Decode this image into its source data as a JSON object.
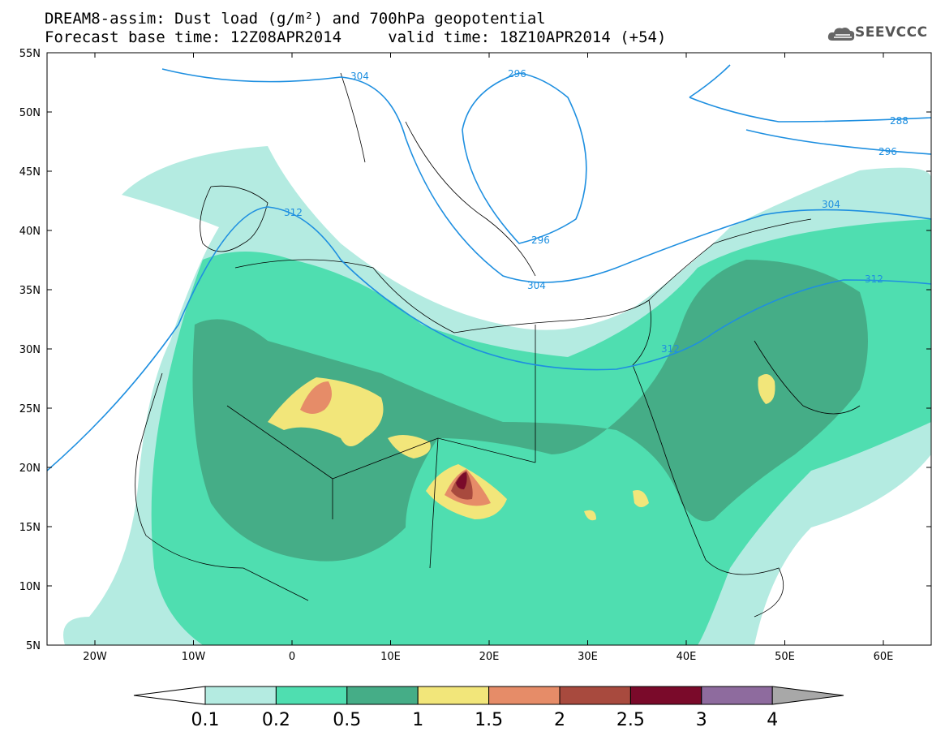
{
  "header": {
    "title_line1": "DREAM8-assim: Dust load (g/m²) and 700hPa geopotential",
    "title_line2": "Forecast base time: 12Z08APR2014     valid time: 18Z10APR2014 (+54)",
    "logo_text": "SEEVCCC"
  },
  "map": {
    "lat_labels": [
      "55N",
      "50N",
      "45N",
      "40N",
      "35N",
      "30N",
      "25N",
      "20N",
      "15N",
      "10N",
      "5N"
    ],
    "lon_labels": [
      "20W",
      "10W",
      "0",
      "10E",
      "20E",
      "30E",
      "40E",
      "50E",
      "60E"
    ],
    "geopotential_color": "#1e8fe0",
    "contour_labels": [
      "304",
      "296",
      "288",
      "296",
      "312",
      "296",
      "304",
      "304",
      "312",
      "312"
    ]
  },
  "colorbar": {
    "labels": [
      "0.1",
      "0.2",
      "0.5",
      "1",
      "1.5",
      "2",
      "2.5",
      "3",
      "4"
    ],
    "colors": [
      "#ffffff",
      "#b4ebe1",
      "#4fdeb0",
      "#45ad87",
      "#f2e67a",
      "#e68c68",
      "#a84a3e",
      "#7a0a2a",
      "#8e6b9e",
      "#a8a8a8"
    ]
  }
}
